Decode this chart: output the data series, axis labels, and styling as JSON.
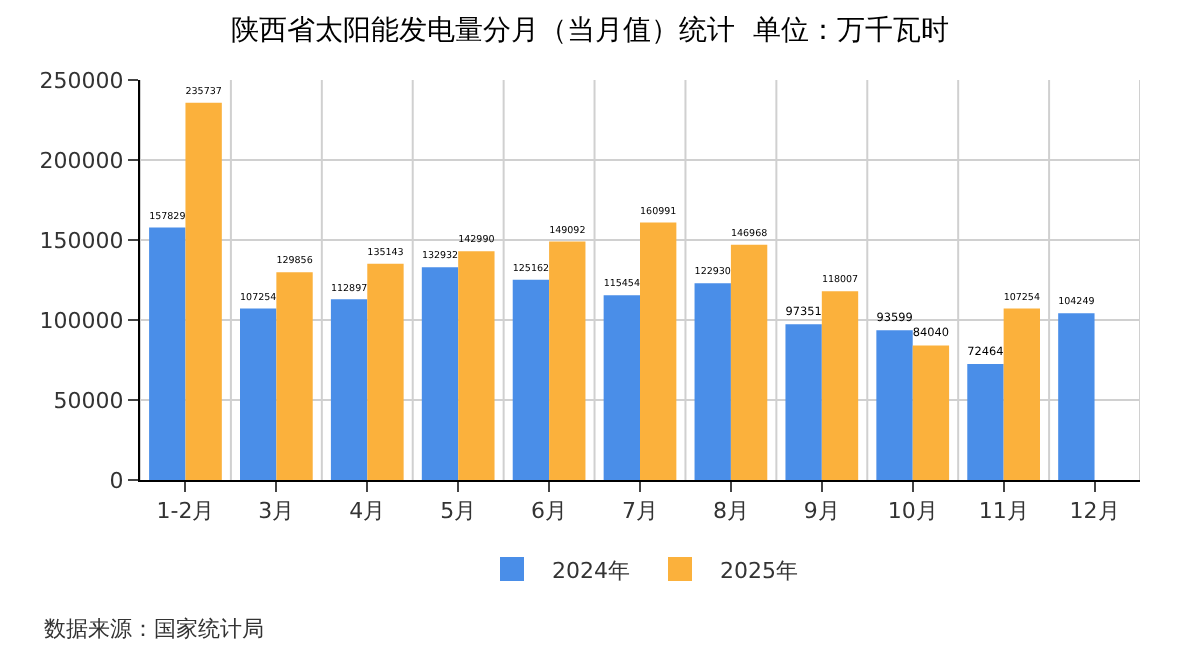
{
  "chart_data": {
    "type": "bar",
    "title": "陕西省太阳能发电量分月（当月值）统计  单位：万千瓦时",
    "categories": [
      "1-2月",
      "3月",
      "4月",
      "5月",
      "6月",
      "7月",
      "8月",
      "9月",
      "10月",
      "11月",
      "12月"
    ],
    "series": [
      {
        "name": "2024年",
        "color": "#4a8ee8",
        "values": [
          157829,
          107254,
          112897,
          132932,
          125162,
          115454,
          122930,
          97351,
          93599,
          72464,
          104249
        ]
      },
      {
        "name": "2025年",
        "color": "#fbb13c",
        "values": [
          235737,
          129856,
          135143,
          142990,
          149092,
          160991,
          146968,
          118007,
          84040,
          107254,
          null
        ]
      }
    ],
    "ylim": [
      0,
      250000
    ],
    "yticks": [
      0,
      50000,
      100000,
      150000,
      200000,
      250000
    ],
    "grid": true,
    "legend": "bottom",
    "data_labels": true,
    "annotations": [
      "数据来源：国家统计局"
    ]
  }
}
